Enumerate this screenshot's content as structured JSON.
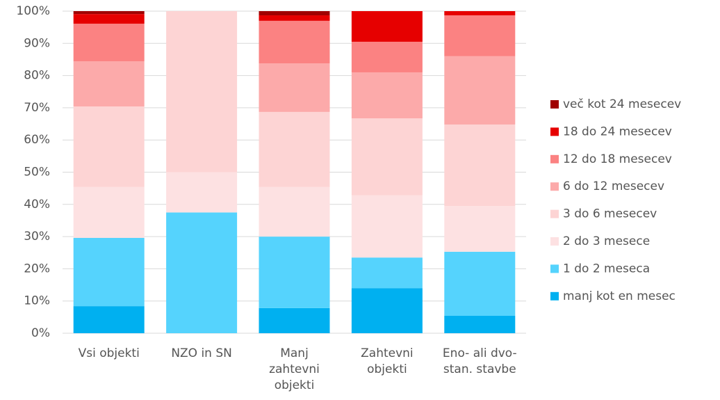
{
  "chart_data": {
    "type": "stacked_bar",
    "categories": [
      [
        "Vsi objekti"
      ],
      [
        "NZO in SN"
      ],
      [
        "Manj",
        "zahtevni",
        "objekti"
      ],
      [
        "Zahtevni",
        "objekti"
      ],
      [
        "Eno- ali dvo-",
        "stan. stavbe"
      ]
    ],
    "series": [
      {
        "name": "manj kot en mesec",
        "color": "#00b0f0",
        "values": [
          8.4,
          0,
          7.8,
          14.0,
          5.4
        ]
      },
      {
        "name": "1 do 2 meseca",
        "color": "#55d3fd",
        "values": [
          21.2,
          37.5,
          22.2,
          9.5,
          19.9
        ]
      },
      {
        "name": "2 do 3 mesece",
        "color": "#fde1e2",
        "values": [
          15.8,
          12.5,
          15.4,
          19.3,
          14.2
        ]
      },
      {
        "name": "3 do 6 mesecev",
        "color": "#fdd4d4",
        "values": [
          25.0,
          50.0,
          23.3,
          23.9,
          25.3
        ]
      },
      {
        "name": "6 do 12 mesecev",
        "color": "#fcaaaa",
        "values": [
          14.0,
          0,
          15.1,
          14.3,
          21.2
        ]
      },
      {
        "name": "12 do 18 mesecev",
        "color": "#fb8282",
        "values": [
          11.7,
          0,
          13.2,
          9.5,
          12.7
        ]
      },
      {
        "name": "18 do 24 mesecev",
        "color": "#e60000",
        "values": [
          3.0,
          0,
          1.7,
          9.5,
          1.3
        ]
      },
      {
        "name": "več kot 24 mesecev",
        "color": "#a00000",
        "values": [
          0.9,
          0,
          1.3,
          0,
          0
        ]
      }
    ],
    "ylim": [
      0,
      100
    ],
    "yticks": [
      {
        "value": 0,
        "label": "0%"
      },
      {
        "value": 10,
        "label": "10%"
      },
      {
        "value": 20,
        "label": "20%"
      },
      {
        "value": 30,
        "label": "30%"
      },
      {
        "value": 40,
        "label": "40%"
      },
      {
        "value": 50,
        "label": "50%"
      },
      {
        "value": 60,
        "label": "60%"
      },
      {
        "value": 70,
        "label": "70%"
      },
      {
        "value": 80,
        "label": "80%"
      },
      {
        "value": 90,
        "label": "90%"
      },
      {
        "value": 100,
        "label": "100%"
      }
    ],
    "grid": true,
    "legend": "right"
  }
}
